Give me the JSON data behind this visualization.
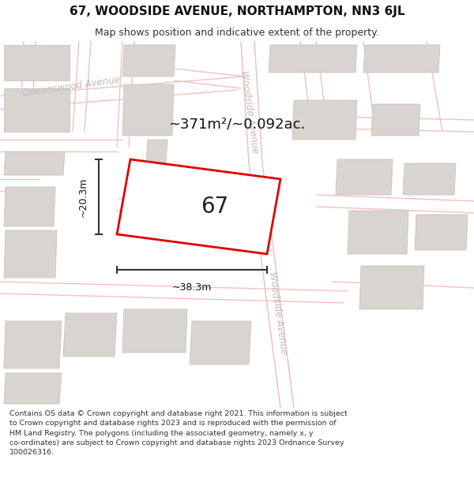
{
  "title": "67, WOODSIDE AVENUE, NORTHAMPTON, NN3 6JL",
  "subtitle": "Map shows position and indicative extent of the property.",
  "area_label": "~371m²/~0.092ac.",
  "property_number": "67",
  "dim_width": "~38.3m",
  "dim_height": "~20.3m",
  "footer_text": "Contains OS data © Crown copyright and database right 2021. This information is subject\nto Crown copyright and database rights 2023 and is reproduced with the permission of\nHM Land Registry. The polygons (including the associated geometry, namely x, y\nco-ordinates) are subject to Crown copyright and database rights 2023 Ordnance Survey\n100026316.",
  "map_bg": "#f7f5f3",
  "road_color": "#f2c0c0",
  "road_lw": 1.0,
  "building_color": "#d8d5d0",
  "building_edge": "#c8c5c0",
  "property_fill": "#ffffff",
  "property_edge": "#dd0000",
  "road_label_color": "#c0bcb8",
  "dim_color": "#333333",
  "header_title_size": 11,
  "header_subtitle_size": 9,
  "footer_size": 6.8,
  "area_label_size": 13,
  "number_size": 20,
  "dim_text_size": 9,
  "road_label_size": 8.5
}
